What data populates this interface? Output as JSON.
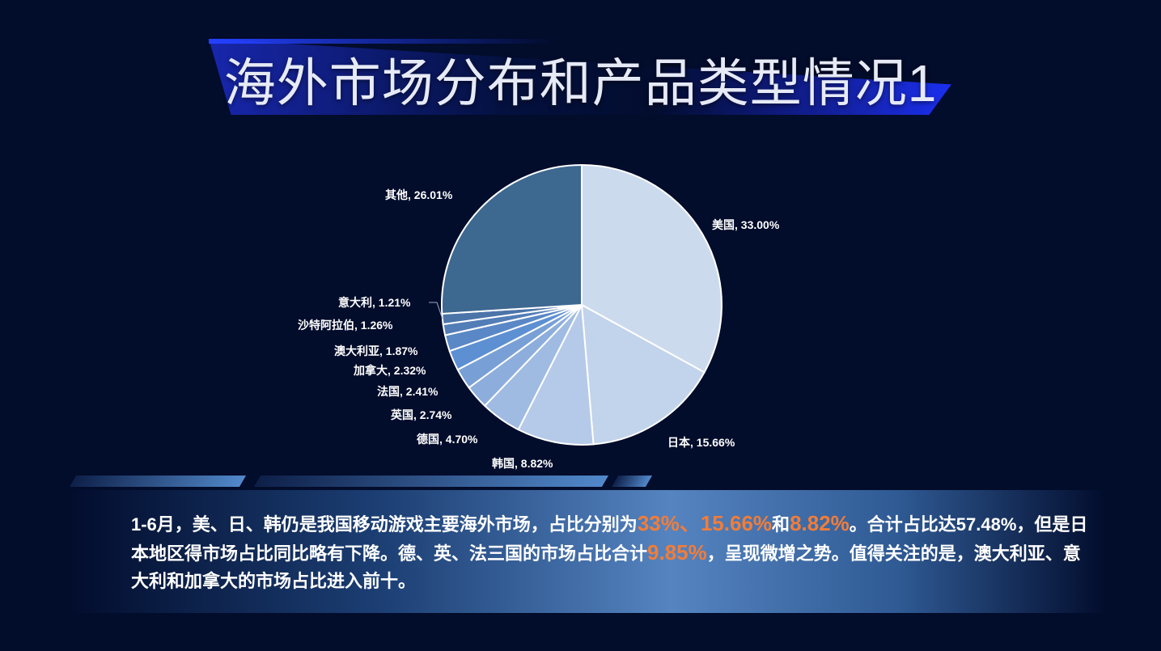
{
  "page": {
    "title": "海外市场分布和产品类型情况1"
  },
  "chart_data": {
    "type": "pie",
    "title": "",
    "start_angle_deg": 0,
    "direction": "clockwise",
    "slices": [
      {
        "name": "美国",
        "value": 33.0,
        "label": "美国, 33.00%",
        "color": "#ccdaee"
      },
      {
        "name": "日本",
        "value": 15.66,
        "label": "日本, 15.66%",
        "color": "#c2d3ec"
      },
      {
        "name": "韩国",
        "value": 8.82,
        "label": "韩国, 8.82%",
        "color": "#b5cae8"
      },
      {
        "name": "德国",
        "value": 4.7,
        "label": "德国, 4.70%",
        "color": "#9fbbe2"
      },
      {
        "name": "英国",
        "value": 2.74,
        "label": "英国, 2.74%",
        "color": "#8daedc"
      },
      {
        "name": "法国",
        "value": 2.41,
        "label": "法国, 2.41%",
        "color": "#79a0d6"
      },
      {
        "name": "加拿大",
        "value": 2.32,
        "label": "加拿大, 2.32%",
        "color": "#5d90d2"
      },
      {
        "name": "澳大利亚",
        "value": 1.87,
        "label": "澳大利亚, 1.87%",
        "color": "#5a88c6"
      },
      {
        "name": "沙特阿拉伯",
        "value": 1.26,
        "label": "沙特阿拉伯, 1.26%",
        "color": "#527db7"
      },
      {
        "name": "意大利",
        "value": 1.21,
        "label": "意大利, 1.21%",
        "color": "#4b74a9"
      },
      {
        "name": "其他",
        "value": 26.01,
        "label": "其他, 26.01%",
        "color": "#3d6890"
      }
    ]
  },
  "summary": {
    "p1": "1-6月，美、日、韩仍是我国移动游戏主要海外市场，占比分别为",
    "h1": "33%、15.66%",
    "p2": "和",
    "h2": "8.82%",
    "p3": "。合计占比达57.48%，但是日本地区得市场占比同比略有下降。德、英、法三国的市场占比合计",
    "h3": "9.85%",
    "p4": "，呈现微增之势。值得关注的是，澳大利亚、意大利和加拿大的市场占比进入前十。"
  }
}
